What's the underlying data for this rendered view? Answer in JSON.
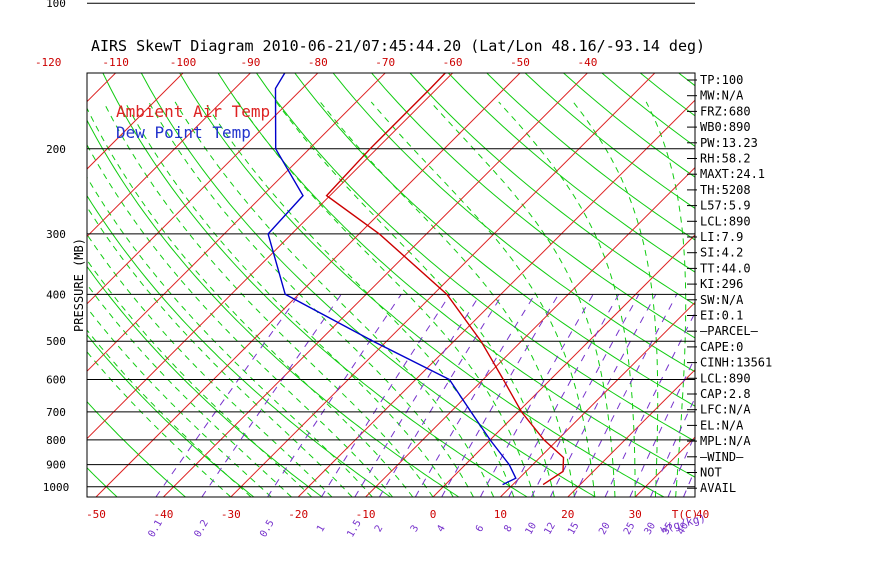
{
  "chart_data": {
    "type": "line",
    "title": "AIRS SkewT Diagram 2010-06-21/07:45:44.20 (Lat/Lon 48.16/-93.14 deg)",
    "ylabel": "PRESSURE (MB)",
    "xlabel": "T(C)",
    "mixing_ratio_label": "w(g/kg)",
    "ylim": [
      1050,
      100
    ],
    "y_scale": "log",
    "pressure_ticks": [
      100,
      200,
      300,
      400,
      500,
      600,
      700,
      800,
      900,
      1000
    ],
    "temp_ticks_top": [
      -120,
      -110,
      -100,
      -90,
      -80,
      -70,
      -60,
      -50,
      -40
    ],
    "temp_ticks_bottom": [
      -50,
      -40,
      -30,
      -20,
      -10,
      0,
      10,
      20,
      30,
      40
    ],
    "mixing_ratio_ticks": [
      "0.1",
      "0.2",
      "0.5",
      "1",
      "1.5",
      "2",
      "3",
      "4",
      "6",
      "8",
      "10",
      "12",
      "15",
      "20",
      "25",
      "30",
      "35",
      "40"
    ],
    "legend": [
      {
        "name": "Ambient Air Temp",
        "color": "#dd2222"
      },
      {
        "name": "Dew Point Temp",
        "color": "#2233cc"
      }
    ],
    "legend_position": "top-left",
    "series": [
      {
        "name": "Ambient Air Temp",
        "color": "#cc0000",
        "points": [
          {
            "p": 100,
            "t": -61.5
          },
          {
            "p": 150,
            "t": -61.0
          },
          {
            "p": 200,
            "t": -61.0
          },
          {
            "p": 250,
            "t": -60.5
          },
          {
            "p": 300,
            "t": -47.0
          },
          {
            "p": 400,
            "t": -28.0
          },
          {
            "p": 500,
            "t": -16.0
          },
          {
            "p": 600,
            "t": -7.0
          },
          {
            "p": 700,
            "t": 0.5
          },
          {
            "p": 800,
            "t": 8.0
          },
          {
            "p": 870,
            "t": 13.5
          },
          {
            "p": 930,
            "t": 15.5
          },
          {
            "p": 990,
            "t": 14.5
          }
        ]
      },
      {
        "name": "Dew Point Temp",
        "color": "#0000cc",
        "points": [
          {
            "p": 100,
            "t": -89.0
          },
          {
            "p": 150,
            "t": -84.0
          },
          {
            "p": 200,
            "t": -75.0
          },
          {
            "p": 250,
            "t": -64.0
          },
          {
            "p": 300,
            "t": -63.5
          },
          {
            "p": 400,
            "t": -52.0
          },
          {
            "p": 500,
            "t": -32.0
          },
          {
            "p": 600,
            "t": -15.0
          },
          {
            "p": 700,
            "t": -7.0
          },
          {
            "p": 800,
            "t": 0.0
          },
          {
            "p": 900,
            "t": 6.5
          },
          {
            "p": 960,
            "t": 9.5
          },
          {
            "p": 990,
            "t": 8.5
          }
        ]
      }
    ],
    "indices": [
      "TP:100",
      "MW:N/A",
      "FRZ:680",
      "WB0:890",
      "PW:13.23",
      "RH:58.2",
      "MAXT:24.1",
      "TH:5208",
      "L57:5.9",
      "LCL:890",
      "LI:7.9",
      "SI:4.2",
      "TT:44.0",
      "KI:296",
      "SW:N/A",
      "EI:0.1",
      "—PARCEL—",
      "CAPE:0",
      "CINH:13561",
      "LCL:890",
      "CAP:2.8",
      "LFC:N/A",
      "EL:N/A",
      "MPL:N/A",
      "—WIND—",
      "NOT",
      "AVAIL"
    ],
    "grid": true
  }
}
